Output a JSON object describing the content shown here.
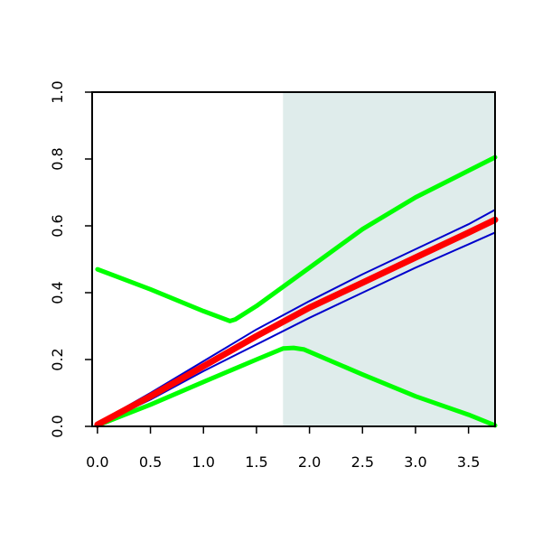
{
  "chart_data": {
    "type": "line",
    "title": "",
    "xlabel": "",
    "ylabel": "",
    "xlim": [
      -0.05,
      3.75
    ],
    "ylim": [
      0,
      1.0
    ],
    "grid": false,
    "legend": "none",
    "x_ticks": [
      "0.0",
      "0.5",
      "1.0",
      "1.5",
      "2.0",
      "2.5",
      "3.0",
      "3.5"
    ],
    "y_ticks": [
      "0.0",
      "0.2",
      "0.4",
      "0.6",
      "0.8",
      "1.0"
    ],
    "shaded_region": {
      "x_range": [
        1.75,
        3.75
      ],
      "color": "#dfeceb"
    },
    "series": [
      {
        "color": "#00ff00",
        "x": [
          0,
          0.5,
          1.0,
          1.25,
          1.3,
          1.5,
          2.0,
          2.5,
          3.0,
          3.5,
          3.75
        ],
        "y": [
          0.47,
          0.41,
          0.345,
          0.315,
          0.32,
          0.36,
          0.475,
          0.59,
          0.685,
          0.765,
          0.805
        ]
      },
      {
        "color": "#00ff00",
        "x": [
          0,
          0.5,
          1.0,
          1.5,
          1.75,
          1.85,
          1.95,
          2.5,
          3.0,
          3.5,
          3.75
        ],
        "y": [
          0.003,
          0.065,
          0.133,
          0.2,
          0.233,
          0.235,
          0.23,
          0.155,
          0.09,
          0.035,
          0.003
        ]
      },
      {
        "color": "#0000cc",
        "x": [
          0,
          0.5,
          1.0,
          1.5,
          2.0,
          2.5,
          3.0,
          3.5,
          3.75
        ],
        "y": [
          0.01,
          0.1,
          0.195,
          0.29,
          0.375,
          0.455,
          0.53,
          0.605,
          0.648
        ]
      },
      {
        "color": "#0000cc",
        "x": [
          0,
          0.5,
          1.0,
          1.5,
          2.0,
          2.5,
          3.0,
          3.5,
          3.75
        ],
        "y": [
          0.005,
          0.08,
          0.165,
          0.245,
          0.325,
          0.4,
          0.475,
          0.545,
          0.58
        ]
      },
      {
        "color": "#ff0000",
        "x": [
          0,
          0.5,
          1.0,
          1.5,
          2.0,
          2.5,
          3.0,
          3.5,
          3.75
        ],
        "y": [
          0.005,
          0.09,
          0.18,
          0.27,
          0.355,
          0.43,
          0.505,
          0.58,
          0.618
        ]
      }
    ]
  }
}
